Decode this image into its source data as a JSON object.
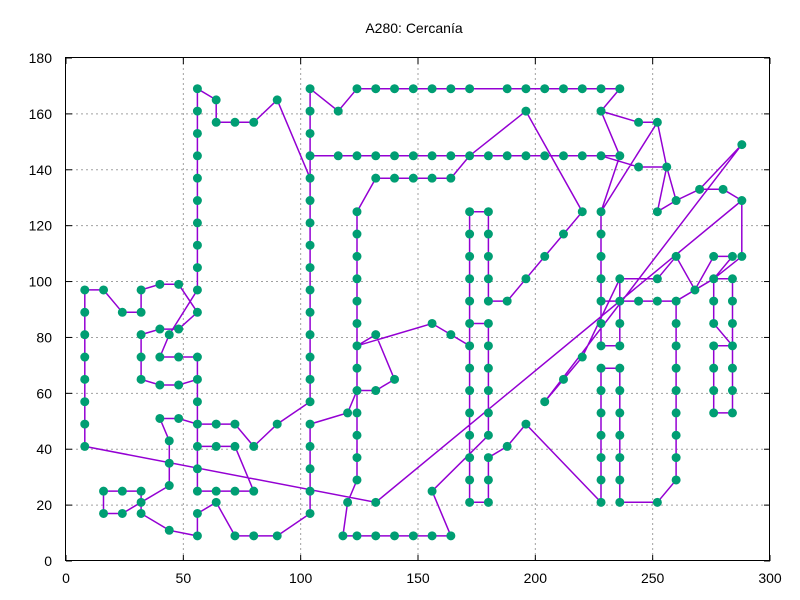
{
  "chart_data": {
    "type": "line",
    "title": "A280: Cercanía",
    "xlim": [
      0,
      300
    ],
    "ylim": [
      0,
      180
    ],
    "xticks": [
      0,
      50,
      100,
      150,
      200,
      250,
      300
    ],
    "yticks": [
      0,
      20,
      40,
      60,
      80,
      100,
      120,
      140,
      160,
      180
    ],
    "grid": true,
    "colors": {
      "route": "#9400d3",
      "city": "#009e73"
    },
    "series": [
      {
        "points": [
          [
            8,
            41
          ],
          [
            8,
            49
          ],
          [
            8,
            57
          ],
          [
            8,
            65
          ],
          [
            8,
            73
          ],
          [
            8,
            81
          ],
          [
            8,
            89
          ],
          [
            8,
            97
          ],
          [
            16,
            97
          ],
          [
            24,
            89
          ],
          [
            32,
            89
          ],
          [
            32,
            97
          ],
          [
            40,
            99
          ],
          [
            48,
            99
          ],
          [
            56,
            89
          ],
          [
            48,
            83
          ],
          [
            40,
            83
          ],
          [
            32,
            81
          ],
          [
            32,
            73
          ],
          [
            32,
            65
          ],
          [
            40,
            63
          ],
          [
            48,
            63
          ],
          [
            56,
            65
          ],
          [
            56,
            57
          ],
          [
            56,
            49
          ],
          [
            48,
            51
          ],
          [
            40,
            51
          ],
          [
            44,
            43
          ],
          [
            44,
            35
          ],
          [
            44,
            27
          ],
          [
            32,
            21
          ],
          [
            24,
            17
          ],
          [
            16,
            17
          ],
          [
            16,
            25
          ],
          [
            24,
            25
          ],
          [
            32,
            25
          ],
          [
            32,
            17
          ],
          [
            44,
            11
          ],
          [
            56,
            9
          ],
          [
            56,
            17
          ],
          [
            64,
            21
          ],
          [
            72,
            9
          ],
          [
            80,
            9
          ],
          [
            90,
            9
          ],
          [
            104,
            17
          ],
          [
            104,
            25
          ],
          [
            104,
            33
          ],
          [
            104,
            41
          ],
          [
            104,
            49
          ],
          [
            120,
            53
          ],
          [
            124,
            61
          ],
          [
            132,
            61
          ],
          [
            140,
            65
          ],
          [
            132,
            81
          ],
          [
            124,
            77
          ],
          [
            124,
            69
          ],
          [
            124,
            61
          ],
          [
            124,
            53
          ],
          [
            124,
            45
          ],
          [
            124,
            37
          ],
          [
            124,
            29
          ],
          [
            120,
            21
          ],
          [
            118,
            9
          ],
          [
            124,
            9
          ],
          [
            132,
            9
          ],
          [
            140,
            9
          ],
          [
            148,
            9
          ],
          [
            156,
            9
          ],
          [
            164,
            9
          ],
          [
            156,
            25
          ],
          [
            180,
            45
          ],
          [
            180,
            53
          ],
          [
            180,
            61
          ],
          [
            180,
            69
          ],
          [
            180,
            77
          ],
          [
            180,
            85
          ],
          [
            172,
            85
          ],
          [
            172,
            77
          ],
          [
            172,
            69
          ],
          [
            172,
            61
          ],
          [
            172,
            53
          ],
          [
            172,
            45
          ],
          [
            172,
            37
          ],
          [
            172,
            29
          ],
          [
            172,
            21
          ],
          [
            180,
            21
          ],
          [
            180,
            29
          ],
          [
            180,
            37
          ],
          [
            188,
            41
          ],
          [
            196,
            49
          ],
          [
            228,
            21
          ],
          [
            228,
            29
          ],
          [
            228,
            37
          ],
          [
            228,
            45
          ],
          [
            228,
            53
          ],
          [
            228,
            61
          ],
          [
            228,
            69
          ],
          [
            236,
            69
          ],
          [
            236,
            61
          ],
          [
            236,
            53
          ],
          [
            236,
            45
          ],
          [
            236,
            37
          ],
          [
            236,
            29
          ],
          [
            236,
            21
          ],
          [
            252,
            21
          ],
          [
            260,
            29
          ],
          [
            260,
            37
          ],
          [
            260,
            45
          ],
          [
            260,
            53
          ],
          [
            260,
            61
          ],
          [
            260,
            69
          ],
          [
            260,
            77
          ],
          [
            260,
            85
          ],
          [
            260,
            93
          ],
          [
            268,
            97
          ],
          [
            276,
            101
          ],
          [
            284,
            109
          ],
          [
            276,
            109
          ],
          [
            268,
            97
          ],
          [
            260,
            109
          ],
          [
            252,
            101
          ],
          [
            236,
            101
          ],
          [
            236,
            93
          ],
          [
            236,
            85
          ],
          [
            236,
            77
          ],
          [
            228,
            77
          ],
          [
            228,
            85
          ],
          [
            228,
            93
          ],
          [
            228,
            101
          ],
          [
            228,
            109
          ],
          [
            228,
            117
          ],
          [
            228,
            125
          ],
          [
            236,
            145
          ],
          [
            228,
            145
          ],
          [
            220,
            145
          ],
          [
            212,
            145
          ],
          [
            204,
            145
          ],
          [
            196,
            145
          ],
          [
            188,
            145
          ],
          [
            180,
            145
          ],
          [
            172,
            145
          ],
          [
            164,
            137
          ],
          [
            156,
            137
          ],
          [
            148,
            137
          ],
          [
            140,
            137
          ],
          [
            132,
            137
          ],
          [
            124,
            125
          ],
          [
            124,
            117
          ],
          [
            124,
            109
          ],
          [
            124,
            101
          ],
          [
            124,
            93
          ],
          [
            124,
            85
          ],
          [
            124,
            77
          ],
          [
            156,
            85
          ],
          [
            164,
            81
          ],
          [
            172,
            77
          ],
          [
            172,
            85
          ],
          [
            172,
            93
          ],
          [
            172,
            101
          ],
          [
            172,
            109
          ],
          [
            172,
            117
          ],
          [
            172,
            125
          ],
          [
            180,
            125
          ],
          [
            180,
            117
          ],
          [
            180,
            109
          ],
          [
            180,
            101
          ],
          [
            180,
            93
          ],
          [
            188,
            93
          ],
          [
            196,
            101
          ],
          [
            204,
            109
          ],
          [
            212,
            117
          ],
          [
            220,
            125
          ],
          [
            196,
            161
          ],
          [
            172,
            145
          ],
          [
            164,
            145
          ],
          [
            156,
            145
          ],
          [
            148,
            145
          ],
          [
            140,
            145
          ],
          [
            132,
            145
          ],
          [
            124,
            145
          ],
          [
            116,
            145
          ],
          [
            104,
            145
          ],
          [
            104,
            137
          ],
          [
            104,
            129
          ],
          [
            104,
            121
          ],
          [
            104,
            113
          ],
          [
            104,
            105
          ],
          [
            104,
            97
          ],
          [
            104,
            89
          ],
          [
            104,
            81
          ],
          [
            104,
            73
          ],
          [
            104,
            65
          ],
          [
            104,
            57
          ],
          [
            90,
            49
          ],
          [
            80,
            41
          ],
          [
            72,
            49
          ],
          [
            64,
            49
          ],
          [
            56,
            49
          ],
          [
            56,
            41
          ],
          [
            64,
            41
          ],
          [
            72,
            41
          ],
          [
            80,
            25
          ],
          [
            72,
            25
          ],
          [
            64,
            25
          ],
          [
            56,
            25
          ],
          [
            56,
            33
          ],
          [
            56,
            41
          ],
          [
            56,
            73
          ],
          [
            48,
            73
          ],
          [
            40,
            73
          ],
          [
            44,
            81
          ],
          [
            56,
            97
          ],
          [
            56,
            105
          ],
          [
            56,
            113
          ],
          [
            56,
            121
          ],
          [
            56,
            129
          ],
          [
            56,
            137
          ],
          [
            56,
            145
          ],
          [
            56,
            153
          ],
          [
            56,
            161
          ],
          [
            56,
            169
          ],
          [
            64,
            165
          ],
          [
            64,
            157
          ],
          [
            72,
            157
          ],
          [
            80,
            157
          ],
          [
            90,
            165
          ],
          [
            104,
            137
          ],
          [
            104,
            145
          ],
          [
            104,
            153
          ],
          [
            104,
            161
          ],
          [
            104,
            169
          ],
          [
            116,
            161
          ],
          [
            124,
            169
          ],
          [
            132,
            169
          ],
          [
            140,
            169
          ],
          [
            148,
            169
          ],
          [
            156,
            169
          ],
          [
            164,
            169
          ],
          [
            172,
            169
          ],
          [
            188,
            169
          ],
          [
            196,
            169
          ],
          [
            204,
            169
          ],
          [
            212,
            169
          ],
          [
            220,
            169
          ],
          [
            228,
            169
          ],
          [
            236,
            169
          ],
          [
            228,
            161
          ],
          [
            244,
            157
          ],
          [
            252,
            157
          ],
          [
            228,
            125
          ],
          [
            228,
            117
          ],
          [
            228,
            109
          ],
          [
            228,
            101
          ],
          [
            228,
            93
          ],
          [
            236,
            93
          ],
          [
            244,
            93
          ],
          [
            252,
            93
          ],
          [
            260,
            93
          ],
          [
            276,
            101
          ],
          [
            284,
            101
          ],
          [
            284,
            93
          ],
          [
            284,
            85
          ],
          [
            284,
            77
          ],
          [
            284,
            69
          ],
          [
            284,
            61
          ],
          [
            284,
            53
          ],
          [
            276,
            53
          ],
          [
            276,
            61
          ],
          [
            276,
            69
          ],
          [
            276,
            77
          ],
          [
            284,
            77
          ],
          [
            276,
            85
          ],
          [
            276,
            93
          ],
          [
            276,
            101
          ],
          [
            288,
            109
          ],
          [
            288,
            129
          ],
          [
            280,
            133
          ],
          [
            270,
            133
          ],
          [
            260,
            129
          ],
          [
            252,
            125
          ],
          [
            256,
            141
          ],
          [
            244,
            141
          ],
          [
            228,
            145
          ],
          [
            236,
            145
          ],
          [
            228,
            161
          ],
          [
            244,
            157
          ],
          [
            252,
            157
          ],
          [
            256,
            141
          ],
          [
            260,
            129
          ],
          [
            270,
            133
          ],
          [
            288,
            149
          ],
          [
            204,
            57
          ],
          [
            212,
            65
          ],
          [
            220,
            73
          ],
          [
            236,
            101
          ],
          [
            252,
            101
          ],
          [
            260,
            109
          ],
          [
            268,
            97
          ],
          [
            276,
            101
          ],
          [
            288,
            109
          ],
          [
            288,
            129
          ],
          [
            132,
            21
          ],
          [
            8,
            41
          ]
        ]
      }
    ]
  }
}
